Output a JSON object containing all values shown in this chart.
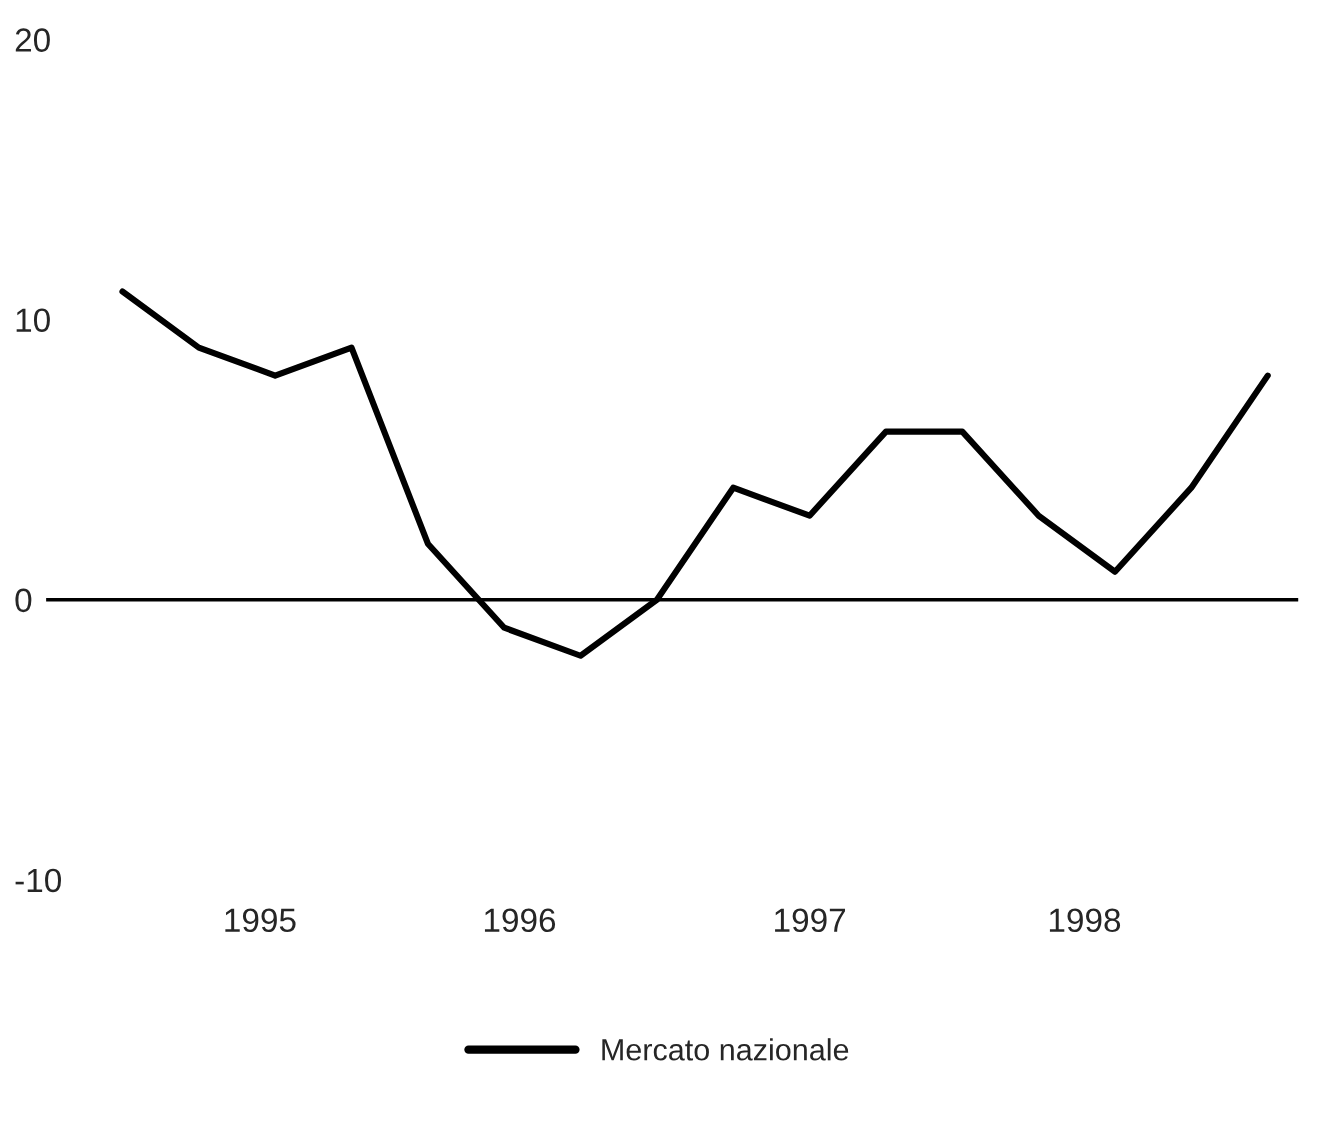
{
  "chart_data": {
    "type": "line",
    "x": [
      1995.0,
      1995.25,
      1995.5,
      1995.75,
      1996.0,
      1996.25,
      1996.5,
      1996.75,
      1997.0,
      1997.25,
      1997.5,
      1997.75,
      1998.0,
      1998.25,
      1998.5,
      1998.75
    ],
    "series": [
      {
        "name": "Mercato nazionale",
        "color": "#000000",
        "values": [
          11,
          9,
          8,
          9,
          2,
          -1,
          -2,
          0,
          4,
          3,
          6,
          6,
          3,
          1,
          4,
          8
        ]
      }
    ],
    "xlim": [
      1994.75,
      1998.85
    ],
    "xticks": [
      {
        "value": 1995.45,
        "label": "1995"
      },
      {
        "value": 1996.3,
        "label": "1996"
      },
      {
        "value": 1997.25,
        "label": "1997"
      },
      {
        "value": 1998.15,
        "label": "1998"
      }
    ],
    "ylim": [
      -10,
      20
    ],
    "yticks": [
      -10,
      0,
      10,
      20
    ],
    "ref_lines": [
      {
        "axis": "y",
        "value": 0,
        "color": "#000000"
      }
    ],
    "grid": false,
    "legend": "bottom",
    "marker": "none",
    "line_style": "solid"
  }
}
